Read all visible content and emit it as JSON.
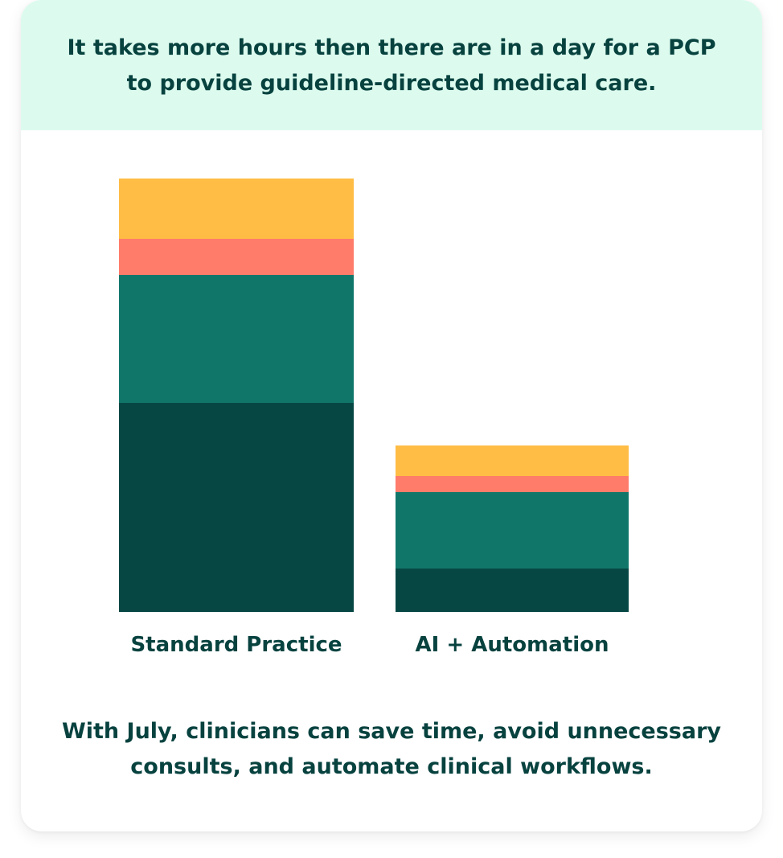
{
  "header": {
    "line1": "It takes more hours then there are in a day for a PCP",
    "line2": "to provide guideline-directed medical care."
  },
  "footer": {
    "line1": "With July, clinicians can save time, avoid unnecessary",
    "line2": "consults, and automate clinical workflows."
  },
  "colors": {
    "header_bg": "#dcfbee",
    "text": "#07423f"
  },
  "chart_data": {
    "type": "bar",
    "stacked": true,
    "title": "",
    "xlabel": "",
    "ylabel": "",
    "categories": [
      "Standard Practice",
      "AI + Automation"
    ],
    "series": [
      {
        "color": "#064744",
        "values": [
          260,
          54
        ]
      },
      {
        "color": "#11766a",
        "values": [
          159,
          95
        ]
      },
      {
        "color": "#ff7b6a",
        "values": [
          45,
          20
        ]
      },
      {
        "color": "#ffbd45",
        "values": [
          75,
          38
        ]
      }
    ],
    "ylim": [
      0,
      539
    ],
    "grid": false,
    "axes_visible": false
  }
}
